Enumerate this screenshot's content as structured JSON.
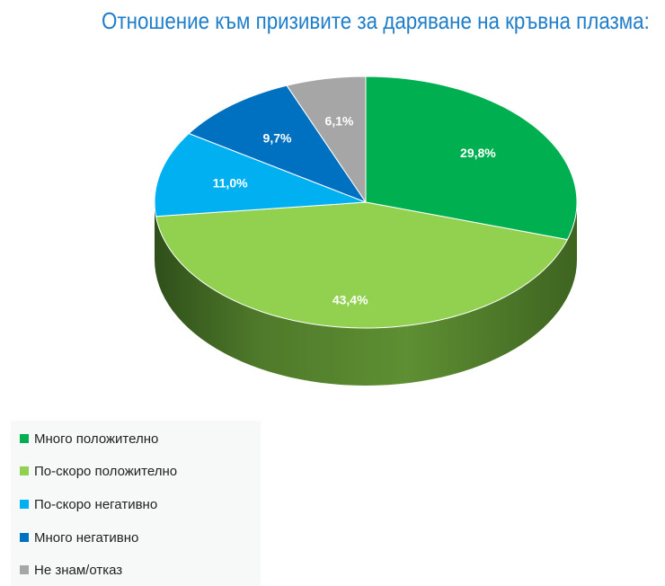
{
  "header": {
    "title": "Отношение към призивите за даряване на кръвна плазма:"
  },
  "chart_data": {
    "type": "pie",
    "title": "Отношение към призивите за даряване на кръвна плазма:",
    "slices": [
      {
        "label": "Много положително",
        "value": 29.8,
        "display": "29,8%",
        "color": "#00b050"
      },
      {
        "label": "По-скоро положително",
        "value": 43.4,
        "display": "43,4%",
        "color": "#92d050"
      },
      {
        "label": "По-скоро негативно",
        "value": 11.0,
        "display": "11,0%",
        "color": "#00b0f0"
      },
      {
        "label": "Много негативно",
        "value": 9.7,
        "display": "9,7%",
        "color": "#0070c0"
      },
      {
        "label": "Не знам/отказ",
        "value": 6.1,
        "display": "6,1%",
        "color": "#a6a6a6"
      }
    ],
    "legend_position": "bottom-left"
  }
}
